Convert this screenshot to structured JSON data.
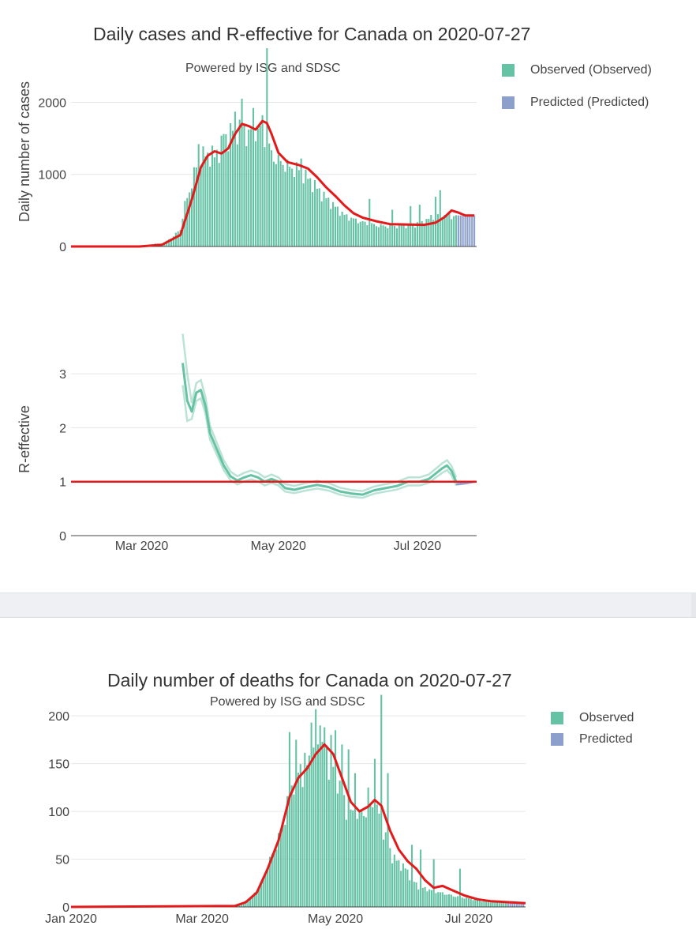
{
  "colors": {
    "observed": "#66c2a5",
    "predicted": "#8da0cb",
    "fit": "#e31a1c",
    "grid": "#e6e6e6"
  },
  "chart_data": [
    {
      "type": "bar",
      "title": "Daily cases and R-effective for Canada on 2020-07-27",
      "subtitle": "Powered by ISG and SDSC",
      "ylabel": "Daily number of cases",
      "ylim": [
        0,
        2750
      ],
      "yticks": [
        0,
        1000,
        2000
      ],
      "xlim_days": [
        0,
        178
      ],
      "legend": {
        "position": "top-right",
        "entries": [
          "Observed (Observed)",
          "Predicted (Predicted)"
        ]
      },
      "observed_anchors_day_value": [
        [
          40,
          40
        ],
        [
          42,
          80
        ],
        [
          45,
          150
        ],
        [
          48,
          250
        ],
        [
          50,
          600
        ],
        [
          52,
          800
        ],
        [
          55,
          1150
        ],
        [
          58,
          1300
        ],
        [
          60,
          1330
        ],
        [
          63,
          1300
        ],
        [
          66,
          1450
        ],
        [
          69,
          1600
        ],
        [
          72,
          1700
        ],
        [
          75,
          1720
        ],
        [
          78,
          1620
        ],
        [
          81,
          1700
        ],
        [
          84,
          1650
        ],
        [
          87,
          1400
        ],
        [
          90,
          1250
        ],
        [
          95,
          1150
        ],
        [
          100,
          1100
        ],
        [
          105,
          950
        ],
        [
          110,
          760
        ],
        [
          115,
          600
        ],
        [
          120,
          450
        ],
        [
          125,
          380
        ],
        [
          130,
          330
        ],
        [
          135,
          300
        ],
        [
          140,
          290
        ],
        [
          145,
          300
        ],
        [
          150,
          310
        ],
        [
          155,
          350
        ],
        [
          160,
          470
        ],
        [
          165,
          440
        ]
      ],
      "observed_spikes_day_value": [
        [
          56,
          1420
        ],
        [
          67,
          1560
        ],
        [
          72,
          1870
        ],
        [
          75,
          2050
        ],
        [
          80,
          1920
        ],
        [
          84,
          1820
        ],
        [
          86,
          2750
        ],
        [
          93,
          1130
        ],
        [
          101,
          1220
        ],
        [
          131,
          660
        ],
        [
          141,
          510
        ],
        [
          149,
          560
        ],
        [
          153,
          580
        ],
        [
          160,
          690
        ],
        [
          162,
          780
        ]
      ],
      "predicted_day_range": [
        170,
        177
      ],
      "predicted_value": 430,
      "fit_line_day_value": [
        [
          0,
          0
        ],
        [
          30,
          0
        ],
        [
          40,
          25
        ],
        [
          48,
          160
        ],
        [
          53,
          650
        ],
        [
          57,
          1100
        ],
        [
          60,
          1260
        ],
        [
          63,
          1320
        ],
        [
          66,
          1290
        ],
        [
          69,
          1360
        ],
        [
          72,
          1560
        ],
        [
          75,
          1700
        ],
        [
          78,
          1670
        ],
        [
          81,
          1620
        ],
        [
          84,
          1740
        ],
        [
          86,
          1710
        ],
        [
          88,
          1560
        ],
        [
          91,
          1300
        ],
        [
          95,
          1170
        ],
        [
          100,
          1130
        ],
        [
          104,
          1080
        ],
        [
          108,
          960
        ],
        [
          112,
          820
        ],
        [
          116,
          700
        ],
        [
          120,
          570
        ],
        [
          124,
          460
        ],
        [
          128,
          400
        ],
        [
          134,
          350
        ],
        [
          140,
          310
        ],
        [
          148,
          305
        ],
        [
          155,
          300
        ],
        [
          160,
          330
        ],
        [
          164,
          410
        ],
        [
          167,
          500
        ],
        [
          170,
          470
        ],
        [
          173,
          430
        ],
        [
          177,
          430
        ]
      ]
    },
    {
      "type": "line",
      "ylabel": "R-effective",
      "ylim": [
        0,
        3.5
      ],
      "yticks": [
        0,
        1,
        2,
        3
      ],
      "xticks": [
        {
          "label": "Mar 2020",
          "day": 31
        },
        {
          "label": "May 2020",
          "day": 91
        },
        {
          "label": "Jul 2020",
          "day": 152
        }
      ],
      "reference_line": 1,
      "r_line_day_value": [
        [
          49,
          3.2
        ],
        [
          51,
          2.5
        ],
        [
          53,
          2.3
        ],
        [
          55,
          2.65
        ],
        [
          57,
          2.7
        ],
        [
          59,
          2.4
        ],
        [
          61,
          1.9
        ],
        [
          64,
          1.6
        ],
        [
          67,
          1.3
        ],
        [
          70,
          1.1
        ],
        [
          73,
          1.02
        ],
        [
          76,
          1.08
        ],
        [
          79,
          1.12
        ],
        [
          82,
          1.08
        ],
        [
          85,
          1.0
        ],
        [
          88,
          1.05
        ],
        [
          91,
          1.0
        ],
        [
          94,
          0.88
        ],
        [
          98,
          0.85
        ],
        [
          103,
          0.9
        ],
        [
          108,
          0.94
        ],
        [
          113,
          0.9
        ],
        [
          118,
          0.82
        ],
        [
          123,
          0.78
        ],
        [
          128,
          0.76
        ],
        [
          133,
          0.84
        ],
        [
          138,
          0.88
        ],
        [
          143,
          0.92
        ],
        [
          148,
          1.0
        ],
        [
          153,
          1.0
        ],
        [
          157,
          1.05
        ],
        [
          160,
          1.15
        ],
        [
          163,
          1.25
        ],
        [
          165,
          1.3
        ],
        [
          167,
          1.2
        ],
        [
          169,
          1.0
        ]
      ],
      "predicted_r_day_value": [
        [
          169,
          0.95
        ],
        [
          173,
          0.97
        ],
        [
          177,
          1.0
        ]
      ]
    },
    {
      "type": "bar",
      "title": "Daily number of deaths for Canada on 2020-07-27",
      "subtitle": "Powered by ISG and SDSC",
      "ylim": [
        0,
        215
      ],
      "yticks": [
        0,
        50,
        100,
        150,
        200
      ],
      "xlim_days": [
        0,
        208
      ],
      "xticks": [
        {
          "label": "Jan 2020",
          "day": 0
        },
        {
          "label": "Mar 2020",
          "day": 60
        },
        {
          "label": "May 2020",
          "day": 121
        },
        {
          "label": "Jul 2020",
          "day": 182
        }
      ],
      "legend": {
        "position": "top-right",
        "entries": [
          "Observed",
          "Predicted"
        ]
      },
      "observed_anchors_day_value": [
        [
          76,
          2
        ],
        [
          79,
          5
        ],
        [
          83,
          12
        ],
        [
          87,
          25
        ],
        [
          90,
          45
        ],
        [
          93,
          62
        ],
        [
          96,
          80
        ],
        [
          99,
          110
        ],
        [
          102,
          140
        ],
        [
          105,
          150
        ],
        [
          108,
          155
        ],
        [
          111,
          160
        ],
        [
          114,
          170
        ],
        [
          117,
          165
        ],
        [
          120,
          150
        ],
        [
          123,
          135
        ],
        [
          126,
          105
        ],
        [
          129,
          100
        ],
        [
          132,
          100
        ],
        [
          135,
          105
        ],
        [
          138,
          110
        ],
        [
          141,
          100
        ],
        [
          144,
          75
        ],
        [
          147,
          55
        ],
        [
          150,
          48
        ],
        [
          153,
          42
        ],
        [
          156,
          30
        ],
        [
          159,
          22
        ],
        [
          162,
          20
        ],
        [
          165,
          18
        ],
        [
          170,
          15
        ],
        [
          175,
          12
        ],
        [
          180,
          10
        ],
        [
          185,
          8
        ],
        [
          190,
          6
        ],
        [
          200,
          5
        ],
        [
          207,
          4
        ]
      ],
      "observed_spikes_day_value": [
        [
          100,
          183
        ],
        [
          103,
          175
        ],
        [
          110,
          193
        ],
        [
          112,
          207
        ],
        [
          114,
          190
        ],
        [
          116,
          188
        ],
        [
          119,
          180
        ],
        [
          121,
          185
        ],
        [
          124,
          170
        ],
        [
          127,
          165
        ],
        [
          130,
          140
        ],
        [
          136,
          125
        ],
        [
          139,
          155
        ],
        [
          142,
          222
        ],
        [
          145,
          140
        ],
        [
          156,
          65
        ],
        [
          160,
          60
        ],
        [
          166,
          50
        ],
        [
          178,
          40
        ]
      ],
      "predicted_day_range": [
        200,
        208
      ],
      "predicted_value": 4,
      "fit_line_day_value": [
        [
          0,
          0
        ],
        [
          75,
          1
        ],
        [
          80,
          5
        ],
        [
          85,
          15
        ],
        [
          90,
          40
        ],
        [
          95,
          70
        ],
        [
          100,
          115
        ],
        [
          104,
          135
        ],
        [
          108,
          145
        ],
        [
          112,
          160
        ],
        [
          116,
          170
        ],
        [
          120,
          160
        ],
        [
          124,
          135
        ],
        [
          128,
          110
        ],
        [
          132,
          100
        ],
        [
          136,
          105
        ],
        [
          139,
          112
        ],
        [
          142,
          106
        ],
        [
          146,
          80
        ],
        [
          150,
          60
        ],
        [
          154,
          48
        ],
        [
          158,
          40
        ],
        [
          162,
          28
        ],
        [
          166,
          20
        ],
        [
          170,
          22
        ],
        [
          174,
          18
        ],
        [
          180,
          12
        ],
        [
          186,
          8
        ],
        [
          192,
          6
        ],
        [
          200,
          5
        ],
        [
          208,
          4
        ]
      ]
    }
  ]
}
